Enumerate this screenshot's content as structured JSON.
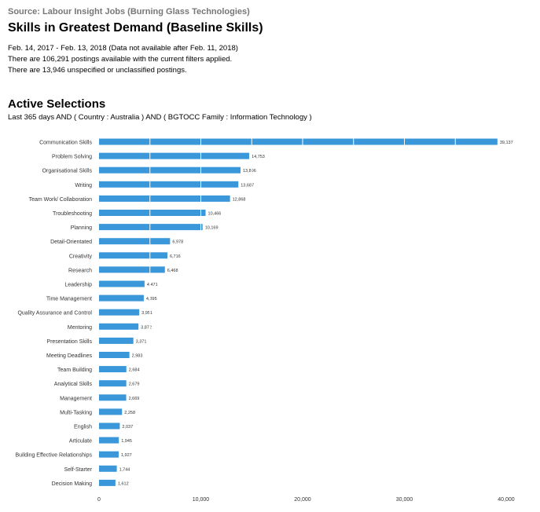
{
  "header": {
    "source": "Source: Labour Insight Jobs (Burning Glass Technologies)",
    "title": "Skills in Greatest Demand (Baseline Skills)",
    "date_range": "Feb.  14, 2017  - Feb.  13, 2018  (Data not available after  Feb.  11, 2018)",
    "postings_available": "There are 106,291 postings available with the current filters applied.",
    "postings_unspecified": "There are 13,946 unspecified or unclassified postings."
  },
  "selections": {
    "title": "Active Selections",
    "filter": "Last 365 days AND ( Country : Australia ) AND ( BGTOCC Family : Information Technology )"
  },
  "colors": {
    "bar": "#3a97d9",
    "axis": "#cccccc",
    "text": "#333333"
  },
  "chart_data": {
    "type": "bar",
    "orientation": "horizontal",
    "categories": [
      "Communication Skills",
      "Problem Solving",
      "Organisational Skills",
      "Writing",
      "Team Work/ Collaboration",
      "Troubleshooting",
      "Planning",
      "Detail-Orientated",
      "Creativity",
      "Research",
      "Leadership",
      "Time Management",
      "Quality Assurance and Control",
      "Mentoring",
      "Presentation Skills",
      "Meeting Deadlines",
      "Team Building",
      "Analytical Skills",
      "Management",
      "Multi-Tasking",
      "English",
      "Articulate",
      "Building Effective Relationships",
      "Self-Starter",
      "Decision Making"
    ],
    "values": [
      39137,
      14753,
      13896,
      13687,
      12868,
      10466,
      10169,
      6978,
      6716,
      6468,
      4471,
      4395,
      3951,
      3872,
      3371,
      2983,
      2684,
      2679,
      2669,
      2258,
      2037,
      1945,
      1927,
      1744,
      1612
    ],
    "value_labels": [
      "39,137",
      "14,753",
      "13,896",
      "13,687",
      "12,868",
      "10,466",
      "10,169",
      "6,978",
      "6,716",
      "6,468",
      "4,471",
      "4,395",
      "3,951",
      "3,872",
      "3,371",
      "2,983",
      "2,684",
      "2,679",
      "2,669",
      "2,258",
      "2,037",
      "1,945",
      "1,927",
      "1,744",
      "1,612"
    ],
    "xlim": [
      0,
      40000
    ],
    "xticks": [
      0,
      10000,
      20000,
      30000,
      40000
    ],
    "xtick_labels": [
      "0",
      "10,000",
      "20,000",
      "30,000",
      "40,000"
    ],
    "grid": true
  }
}
